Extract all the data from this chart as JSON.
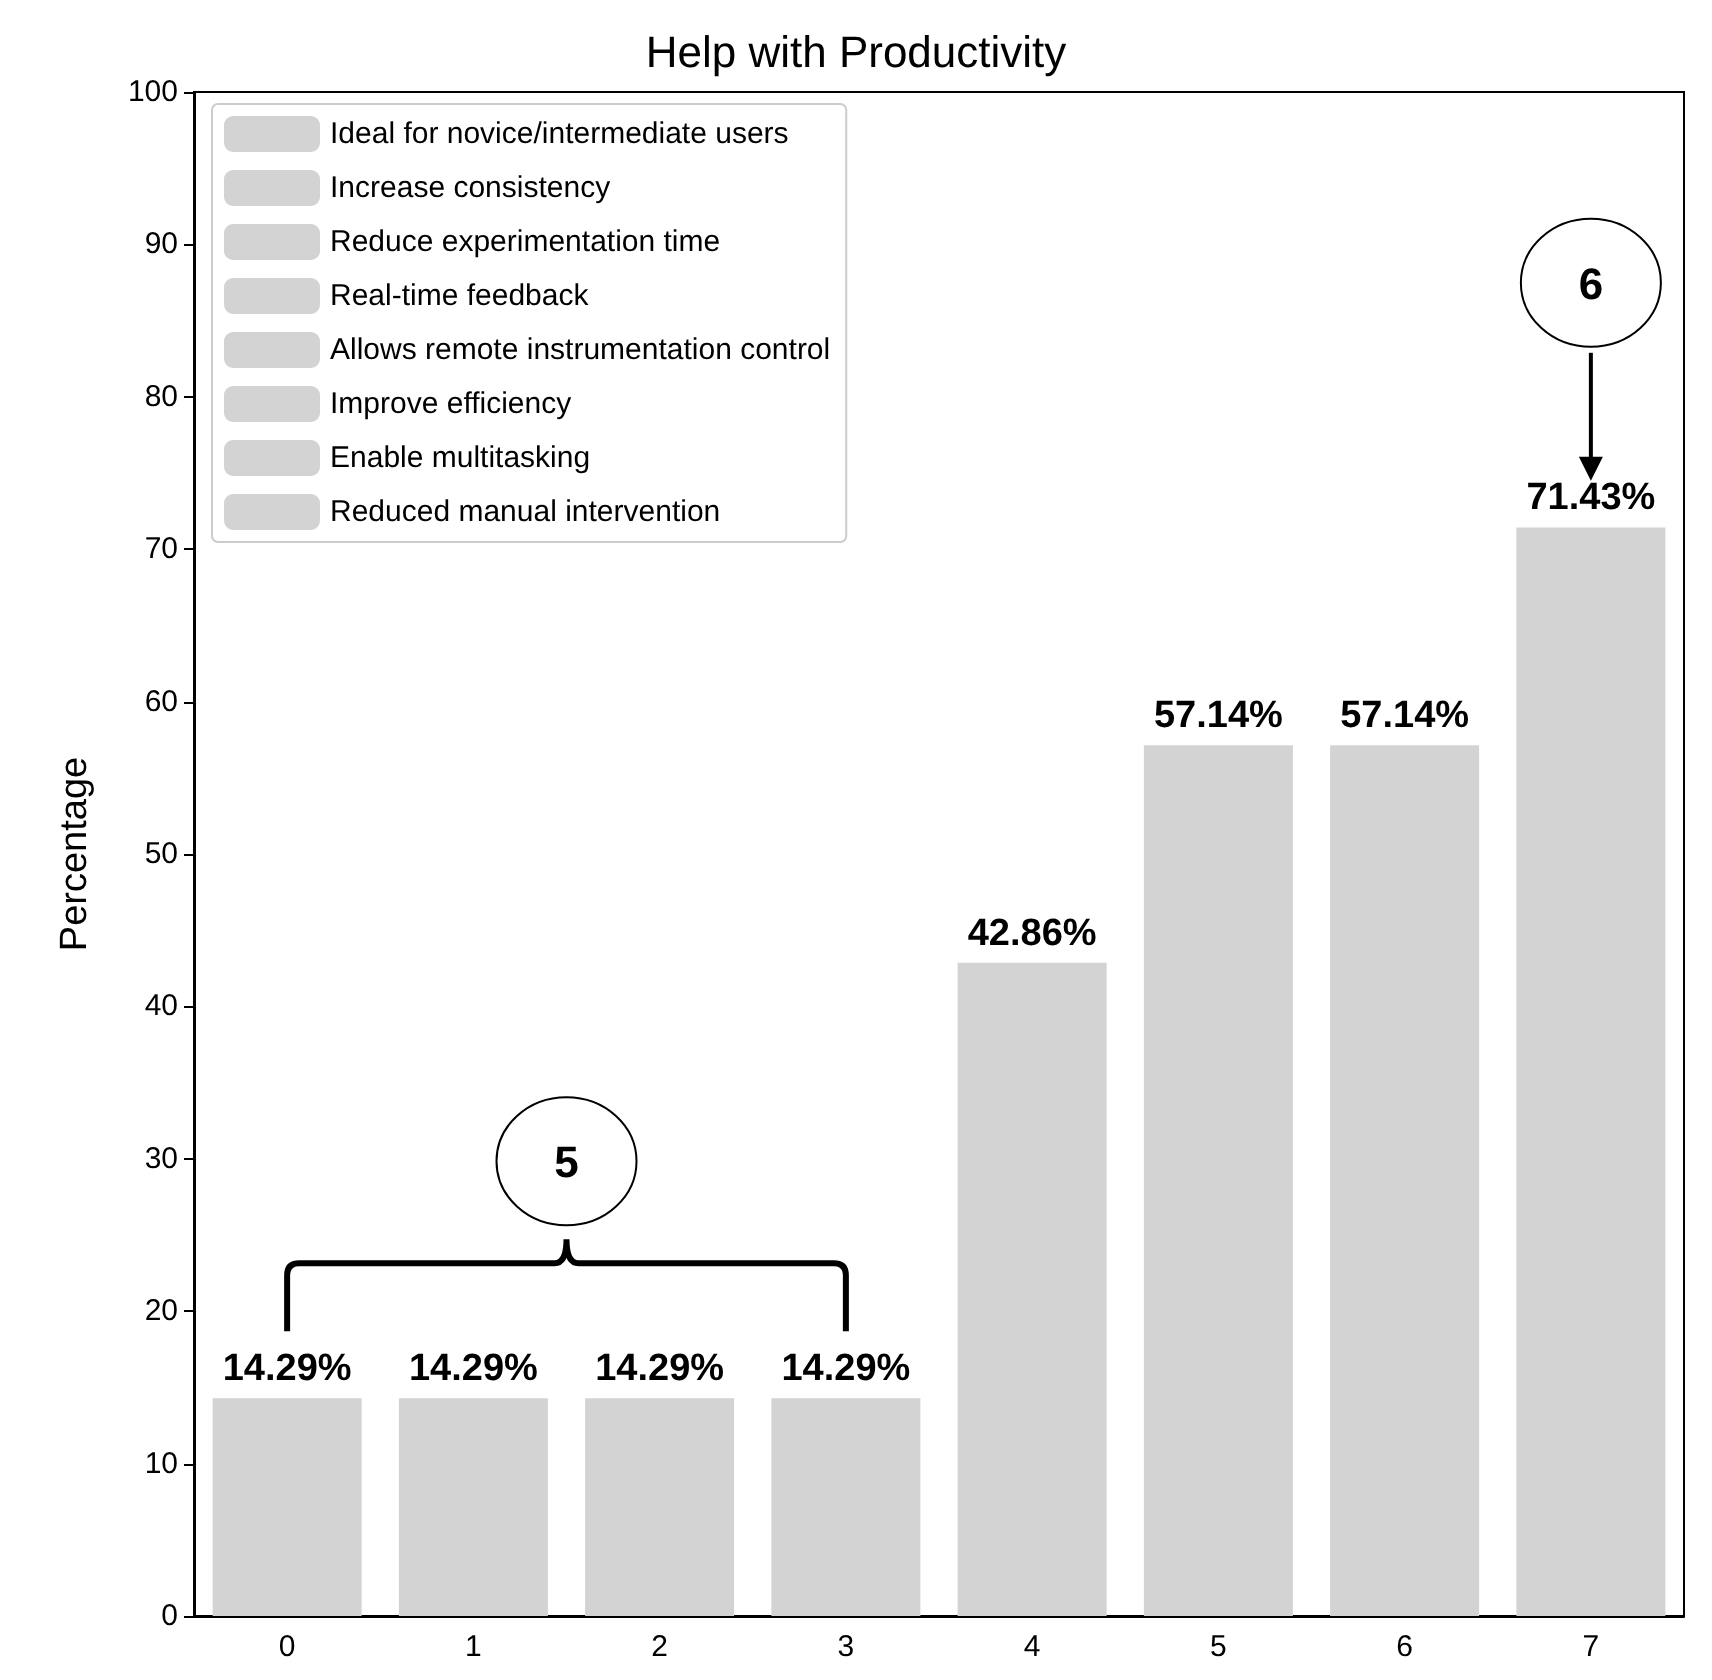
{
  "chart_data": {
    "type": "bar",
    "title": "Help with Productivity",
    "ylabel": "Percentage",
    "categories": [
      "0",
      "1",
      "2",
      "3",
      "4",
      "5",
      "6",
      "7"
    ],
    "series": [
      {
        "name": "Ideal for novice/intermediate users",
        "color": "#d3d3d3",
        "values": [
          14.29,
          null,
          null,
          null,
          null,
          null,
          null,
          null
        ],
        "value_labels": [
          "14.29%",
          null,
          null,
          null,
          null,
          null,
          null,
          null
        ]
      },
      {
        "name": "Increase consistency",
        "color": "#d3d3d3",
        "values": [
          null,
          14.29,
          null,
          null,
          null,
          null,
          null,
          null
        ],
        "value_labels": [
          null,
          "14.29%",
          null,
          null,
          null,
          null,
          null,
          null
        ]
      },
      {
        "name": "Reduce experimentation time",
        "color": "#d3d3d3",
        "values": [
          null,
          null,
          14.29,
          null,
          null,
          null,
          null,
          null
        ],
        "value_labels": [
          null,
          null,
          "14.29%",
          null,
          null,
          null,
          null,
          null
        ]
      },
      {
        "name": "Real-time feedback",
        "color": "#d3d3d3",
        "values": [
          null,
          null,
          null,
          14.29,
          null,
          null,
          null,
          null
        ],
        "value_labels": [
          null,
          null,
          null,
          "14.29%",
          null,
          null,
          null,
          null
        ]
      },
      {
        "name": "Allows remote instrumentation control",
        "color": "#d3d3d3",
        "values": [
          null,
          null,
          null,
          null,
          42.86,
          null,
          null,
          null
        ],
        "value_labels": [
          null,
          null,
          null,
          null,
          "42.86%",
          null,
          null,
          null
        ]
      },
      {
        "name": "Improve efficiency",
        "color": "#d3d3d3",
        "values": [
          null,
          null,
          null,
          null,
          null,
          57.14,
          null,
          null
        ],
        "value_labels": [
          null,
          null,
          null,
          null,
          null,
          "57.14%",
          null,
          null
        ]
      },
      {
        "name": "Enable multitasking",
        "color": "#d3d3d3",
        "values": [
          null,
          null,
          null,
          null,
          null,
          null,
          57.14,
          null
        ],
        "value_labels": [
          null,
          null,
          null,
          null,
          null,
          null,
          "57.14%",
          null
        ]
      },
      {
        "name": "Reduced manual intervention",
        "color": "#d3d3d3",
        "values": [
          null,
          null,
          null,
          null,
          null,
          null,
          null,
          71.43
        ],
        "value_labels": [
          null,
          null,
          null,
          null,
          null,
          null,
          null,
          "71.43%"
        ]
      }
    ],
    "ylim": [
      0,
      100
    ],
    "yticks": [
      0,
      10,
      20,
      30,
      40,
      50,
      60,
      70,
      80,
      90,
      100
    ],
    "annotations": [
      "5",
      "6"
    ],
    "legend": "top left",
    "grid": false
  }
}
